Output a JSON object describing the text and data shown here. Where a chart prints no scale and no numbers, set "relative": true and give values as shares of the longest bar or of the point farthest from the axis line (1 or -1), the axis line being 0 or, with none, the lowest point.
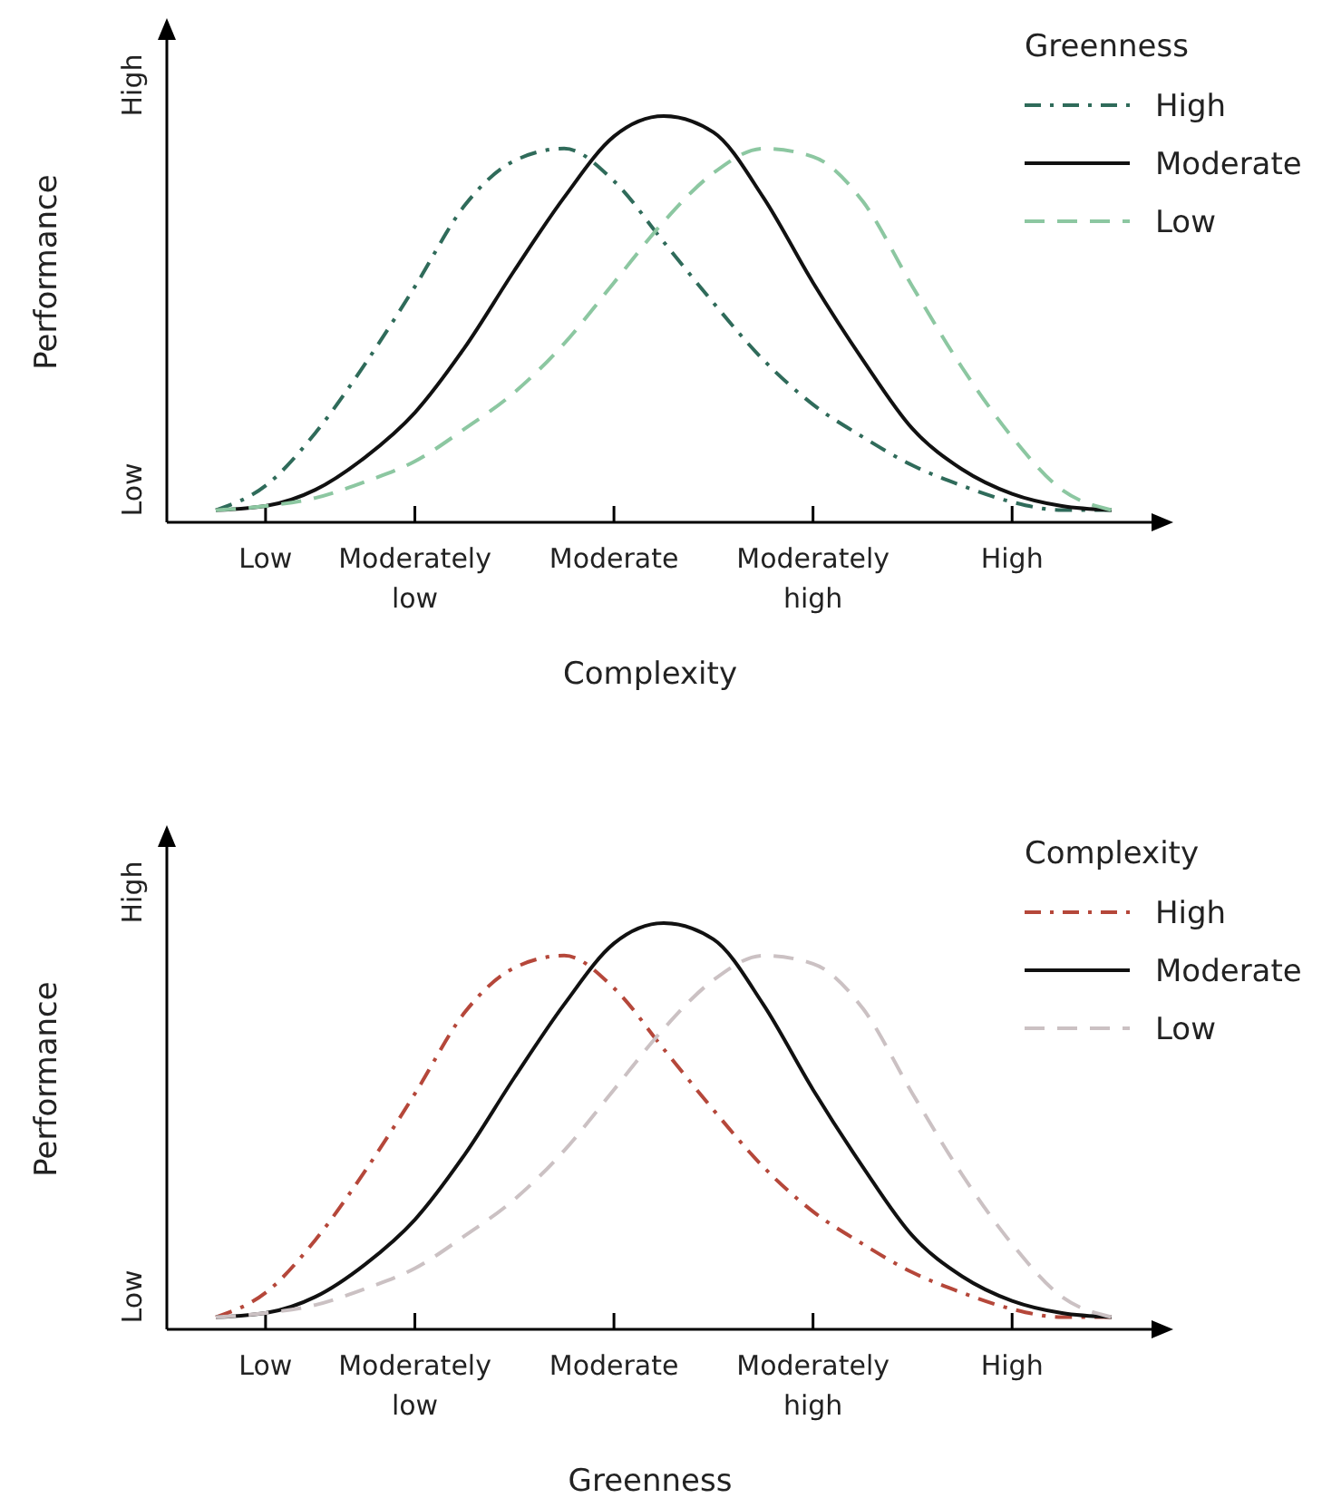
{
  "chart_data": [
    {
      "type": "line",
      "xlabel": "Complexity",
      "ylabel": "Performance",
      "legend_title": "Greenness",
      "legend": "top right",
      "relative": true,
      "annotations": [
        "Low",
        "High"
      ],
      "categories": [
        null,
        "Low",
        null,
        null,
        "Moderately low",
        null,
        null,
        null,
        "Moderate",
        null,
        null,
        null,
        "Moderately high",
        null,
        null,
        null,
        "High",
        null,
        null
      ],
      "series": [
        {
          "name": "High",
          "color": "#2f6b5a",
          "line_style": "dashdot",
          "values": [
            0.03,
            0.09,
            0.22,
            0.39,
            0.58,
            0.78,
            0.89,
            0.92,
            0.84,
            0.69,
            0.54,
            0.4,
            0.29,
            0.21,
            0.14,
            0.09,
            0.05,
            0.03,
            0.03
          ]
        },
        {
          "name": "Moderate",
          "color": "#111111",
          "line_style": "solid",
          "values": [
            0.03,
            0.04,
            0.08,
            0.16,
            0.27,
            0.43,
            0.62,
            0.8,
            0.95,
            1.0,
            0.96,
            0.8,
            0.59,
            0.4,
            0.23,
            0.13,
            0.07,
            0.04,
            0.03
          ]
        },
        {
          "name": "Low",
          "color": "#8cc7a1",
          "line_style": "dashed",
          "values": [
            0.03,
            0.04,
            0.06,
            0.1,
            0.15,
            0.23,
            0.32,
            0.44,
            0.59,
            0.74,
            0.86,
            0.92,
            0.9,
            0.79,
            0.58,
            0.38,
            0.21,
            0.08,
            0.03
          ]
        }
      ]
    },
    {
      "type": "line",
      "xlabel": "Greenness",
      "ylabel": "Performance",
      "legend_title": "Complexity",
      "legend": "top right",
      "relative": true,
      "annotations": [
        "Low",
        "High"
      ],
      "categories": [
        null,
        "Low",
        null,
        null,
        "Moderately low",
        null,
        null,
        null,
        "Moderate",
        null,
        null,
        null,
        "Moderately high",
        null,
        null,
        null,
        "High",
        null,
        null
      ],
      "series": [
        {
          "name": "High",
          "color": "#b5473a",
          "line_style": "dashdot",
          "values": [
            0.03,
            0.09,
            0.22,
            0.39,
            0.58,
            0.78,
            0.89,
            0.92,
            0.84,
            0.69,
            0.54,
            0.4,
            0.29,
            0.21,
            0.14,
            0.09,
            0.05,
            0.03,
            0.03
          ]
        },
        {
          "name": "Moderate",
          "color": "#111111",
          "line_style": "solid",
          "values": [
            0.03,
            0.04,
            0.08,
            0.16,
            0.27,
            0.43,
            0.62,
            0.8,
            0.95,
            1.0,
            0.96,
            0.8,
            0.59,
            0.4,
            0.23,
            0.13,
            0.07,
            0.04,
            0.03
          ]
        },
        {
          "name": "Low",
          "color": "#cbc1c3",
          "line_style": "dashed",
          "values": [
            0.03,
            0.04,
            0.06,
            0.1,
            0.15,
            0.23,
            0.32,
            0.44,
            0.59,
            0.74,
            0.86,
            0.92,
            0.9,
            0.79,
            0.58,
            0.38,
            0.21,
            0.08,
            0.03
          ]
        }
      ]
    }
  ]
}
